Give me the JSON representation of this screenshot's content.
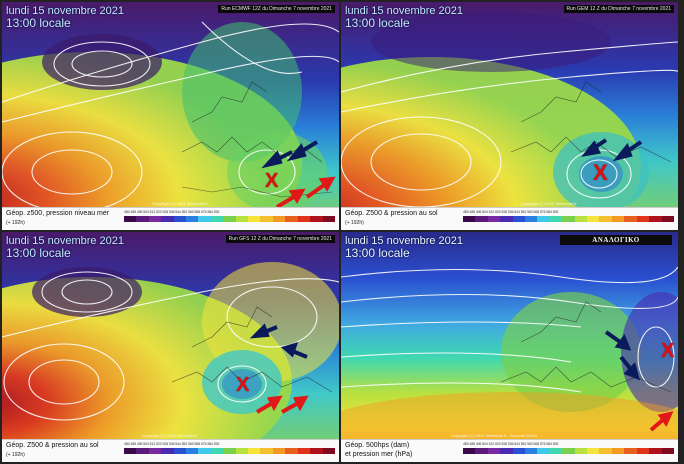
{
  "panels": [
    {
      "date_line": "lundi 15 novembre 2021",
      "time_line": "13:00 locale",
      "run_label": "Run ECMWF 12Z du Dimanche 7 novembre 2021",
      "caption_line1": "Géop. z500, pression niveau mer",
      "caption_line2": "(+ 192h)",
      "copyright": "Copyright (C) 2021 Meteociel.fr"
    },
    {
      "date_line": "lundi 15 novembre 2021",
      "time_line": "13:00 locale",
      "run_label": "Run GEM 12 Z du Dimanche 7 novembre 2021",
      "caption_line1": "Géop. Z500 & pression au sol",
      "caption_line2": "(+ 192h)",
      "copyright": "Copyright (C) 2021 Meteociel.fr"
    },
    {
      "date_line": "lundi 15 novembre 2021",
      "time_line": "13:00 locale",
      "run_label": "Run GFS 12 Z du Dimanche 7 novembre 2021",
      "caption_line1": "Géop. Z500 & pression au sol",
      "caption_line2": "(+ 192h)",
      "copyright": "Copyright (C) 2021 Meteociel.fr"
    },
    {
      "date_line": "lundi 15 novembre 2021",
      "time_line": "13:00 locale",
      "analog_label": "ΑΝΑΛΟΓΙΚΟ",
      "caption_line1": "Géop. 500hps (dam)",
      "caption_line2": "et pression mer (hPa)",
      "copyright": "Copyright (C) 2021 Meteociel.fr - Sources NOAA"
    }
  ],
  "marker_symbol": "X",
  "legend_scale": "480 488 496 504 512 520 528 536 544 552 560 568 576 584 592",
  "colors": {
    "low": "#5a1a7a",
    "blue": "#2a4fd0",
    "cyan": "#40c8e8",
    "green": "#7ad04a",
    "yellow": "#f4e43a",
    "orange": "#f49a22",
    "red": "#e0341a",
    "arrow_red": "#e01818",
    "arrow_navy": "#0a1a5a"
  }
}
